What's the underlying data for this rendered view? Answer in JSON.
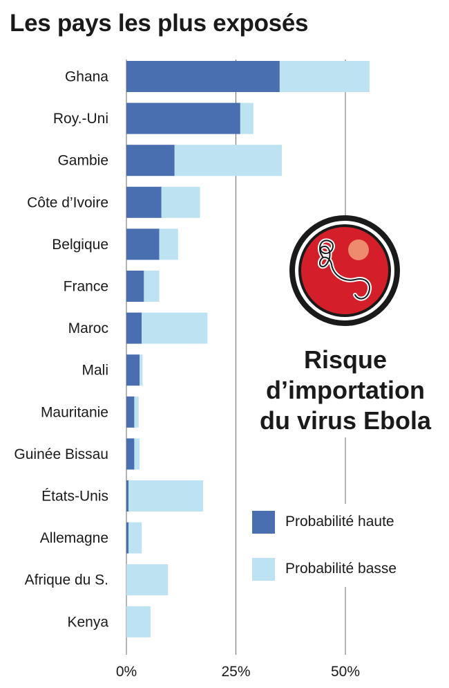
{
  "title": "Les pays les plus exposés",
  "side_title": [
    "Risque",
    "d’importation",
    "du virus Ebola"
  ],
  "legend": [
    {
      "label": "Probabilité haute",
      "color": "#4a6fb0"
    },
    {
      "label": "Probabilité basse",
      "color": "#bde3f3"
    }
  ],
  "badge_icon": "ebola-virus-icon",
  "chart_data": {
    "type": "bar",
    "orientation": "horizontal",
    "stacked": true,
    "categories": [
      "Ghana",
      "Roy.-Uni",
      "Gambie",
      "Côte d’Ivoire",
      "Belgique",
      "France",
      "Maroc",
      "Mali",
      "Mauritanie",
      "Guinée Bissau",
      "États-Unis",
      "Allemagne",
      "Afrique du S.",
      "Kenya"
    ],
    "series": [
      {
        "name": "Probabilité haute",
        "color": "#4a6fb0",
        "values": [
          35,
          26,
          11,
          8,
          7.5,
          4,
          3.5,
          3,
          1.8,
          1.8,
          0.5,
          0.5,
          0,
          0
        ]
      },
      {
        "name": "Probabilité basse",
        "color": "#bde3f3",
        "values": [
          20.5,
          3,
          24.5,
          8.8,
          4.3,
          3.5,
          15,
          0.7,
          1,
          1.2,
          17,
          3,
          9.5,
          5.5
        ]
      }
    ],
    "xticks": [
      0,
      25,
      50
    ],
    "xtick_labels": [
      "0%",
      "25%",
      "50%"
    ],
    "xlim": [
      0,
      60
    ],
    "grid": true
  }
}
